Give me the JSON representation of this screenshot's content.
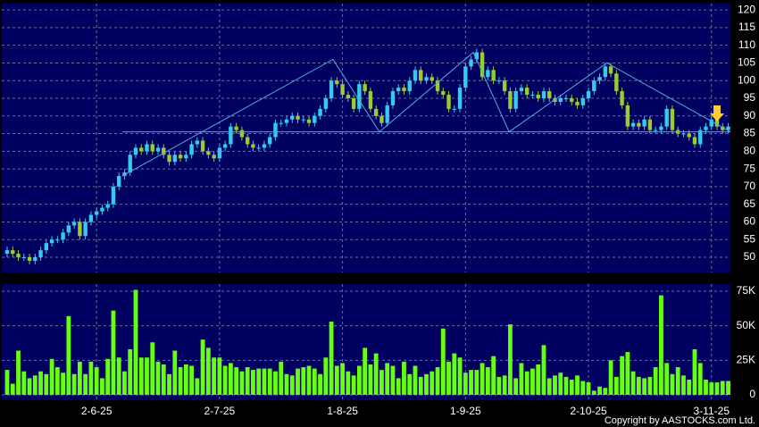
{
  "chart_data": {
    "type": "candlestick",
    "copyright": "Copyright by AASTOCKS.com Ltd.",
    "categories": [
      null,
      null,
      null,
      null,
      null,
      null,
      null,
      null,
      null,
      null,
      null,
      null,
      null,
      null,
      null,
      null,
      "2-6-25",
      null,
      null,
      null,
      null,
      null,
      null,
      null,
      null,
      null,
      null,
      null,
      null,
      null,
      null,
      null,
      null,
      null,
      null,
      null,
      null,
      null,
      "2-7-25",
      null,
      null,
      null,
      null,
      null,
      null,
      null,
      null,
      null,
      null,
      null,
      null,
      null,
      null,
      null,
      null,
      null,
      null,
      null,
      null,
      null,
      "1-8-25",
      null,
      null,
      null,
      null,
      null,
      null,
      null,
      null,
      null,
      null,
      null,
      null,
      null,
      null,
      null,
      null,
      null,
      null,
      null,
      null,
      null,
      "1-9-25",
      null,
      null,
      null,
      null,
      null,
      null,
      null,
      null,
      null,
      null,
      null,
      null,
      null,
      null,
      null,
      null,
      null,
      null,
      null,
      null,
      null,
      "2-10-25",
      null,
      null,
      null,
      null,
      null,
      null,
      null,
      null,
      null,
      null,
      null,
      null,
      null,
      null,
      null,
      null,
      null,
      null,
      null,
      null,
      null,
      "3-11-25",
      null,
      null,
      null
    ],
    "open": [
      51,
      52,
      51,
      50,
      50,
      49,
      50,
      52,
      54,
      55,
      55,
      57,
      59,
      60,
      56,
      60,
      62,
      63,
      64,
      65,
      70,
      73,
      74,
      79,
      81,
      80,
      82,
      80,
      81,
      79,
      77,
      79,
      78,
      79,
      82,
      83,
      80,
      79,
      78,
      81,
      82,
      87,
      86,
      84,
      82,
      81,
      81,
      82,
      84,
      88,
      88,
      89,
      90,
      89,
      89,
      88,
      90,
      92,
      95,
      100,
      99,
      96,
      95,
      92,
      99,
      97,
      92,
      90,
      88,
      93,
      97,
      98,
      97,
      100,
      103,
      100,
      101,
      100,
      97,
      96,
      92,
      92,
      98,
      104,
      106,
      108,
      101,
      103,
      100,
      100,
      97,
      92,
      97,
      98,
      96,
      96,
      95,
      97,
      95,
      94,
      95,
      95,
      94,
      93,
      95,
      97,
      100,
      101,
      104,
      102,
      97,
      93,
      87,
      88,
      87,
      89,
      86,
      86,
      87,
      92,
      86,
      85,
      85,
      84,
      82,
      86,
      87,
      89,
      87,
      86
    ],
    "high": [
      53,
      53,
      52,
      51,
      51,
      51,
      53,
      55,
      56,
      56,
      58,
      60,
      61,
      61,
      61,
      63,
      64,
      65,
      66,
      71,
      74,
      75,
      80,
      82,
      82,
      83,
      83,
      82,
      82,
      80,
      80,
      80,
      80,
      83,
      84,
      84,
      81,
      80,
      82,
      83,
      88,
      88,
      87,
      85,
      83,
      82,
      83,
      85,
      89,
      89,
      90,
      91,
      91,
      90,
      90,
      91,
      93,
      96,
      101,
      101,
      100,
      97,
      96,
      100,
      100,
      98,
      93,
      91,
      94,
      98,
      99,
      99,
      101,
      104,
      104,
      102,
      102,
      101,
      98,
      97,
      93,
      99,
      105,
      107,
      109,
      109,
      104,
      104,
      101,
      101,
      98,
      98,
      99,
      99,
      97,
      97,
      98,
      98,
      96,
      96,
      96,
      96,
      95,
      96,
      98,
      101,
      102,
      105,
      105,
      103,
      98,
      94,
      89,
      89,
      90,
      90,
      87,
      88,
      93,
      93,
      87,
      86,
      86,
      85,
      87,
      88,
      90,
      90,
      88,
      88
    ],
    "low": [
      50,
      50,
      49,
      49,
      48,
      48,
      49,
      51,
      53,
      54,
      54,
      56,
      58,
      55,
      55,
      59,
      61,
      62,
      63,
      64,
      69,
      72,
      73,
      78,
      79,
      79,
      79,
      79,
      78,
      76,
      76,
      77,
      77,
      78,
      81,
      79,
      78,
      77,
      77,
      80,
      81,
      85,
      83,
      81,
      80,
      80,
      80,
      81,
      83,
      87,
      87,
      88,
      88,
      88,
      87,
      87,
      89,
      91,
      94,
      98,
      95,
      94,
      91,
      91,
      96,
      91,
      89,
      87,
      87,
      92,
      96,
      96,
      96,
      99,
      99,
      99,
      99,
      96,
      95,
      91,
      91,
      91,
      97,
      103,
      105,
      100,
      100,
      99,
      99,
      96,
      91,
      91,
      96,
      95,
      95,
      94,
      94,
      94,
      93,
      93,
      94,
      93,
      92,
      92,
      94,
      96,
      99,
      100,
      101,
      96,
      92,
      86,
      86,
      86,
      86,
      85,
      85,
      85,
      86,
      85,
      84,
      84,
      83,
      81,
      81,
      85,
      86,
      86,
      85,
      85
    ],
    "close": [
      52,
      51,
      50,
      50,
      49,
      50,
      52,
      54,
      55,
      55,
      57,
      59,
      60,
      56,
      60,
      62,
      63,
      64,
      65,
      70,
      73,
      74,
      79,
      81,
      80,
      82,
      80,
      81,
      79,
      77,
      79,
      78,
      79,
      82,
      83,
      80,
      79,
      78,
      81,
      82,
      87,
      86,
      84,
      82,
      81,
      81,
      82,
      84,
      88,
      88,
      89,
      90,
      89,
      89,
      88,
      90,
      92,
      95,
      100,
      99,
      96,
      95,
      92,
      99,
      97,
      92,
      90,
      88,
      93,
      97,
      98,
      97,
      100,
      103,
      100,
      101,
      100,
      97,
      96,
      92,
      92,
      98,
      104,
      106,
      108,
      101,
      103,
      100,
      100,
      97,
      92,
      97,
      98,
      96,
      96,
      95,
      97,
      95,
      94,
      95,
      95,
      94,
      93,
      95,
      97,
      100,
      101,
      104,
      102,
      97,
      93,
      87,
      88,
      87,
      89,
      86,
      86,
      87,
      92,
      86,
      85,
      85,
      84,
      82,
      86,
      87,
      89,
      87,
      86,
      87
    ],
    "volume": [
      18000,
      8000,
      32000,
      17000,
      12000,
      14000,
      17000,
      15000,
      26000,
      20000,
      16000,
      57000,
      15000,
      24000,
      15000,
      24000,
      20000,
      12000,
      26000,
      61000,
      27000,
      17000,
      33000,
      76000,
      27000,
      27000,
      38000,
      24000,
      22000,
      15000,
      32000,
      20000,
      22000,
      21000,
      12000,
      40000,
      34000,
      27000,
      27000,
      21000,
      23000,
      20000,
      17000,
      20000,
      18000,
      19000,
      19000,
      19000,
      17000,
      24000,
      15000,
      14000,
      19000,
      20000,
      21000,
      19000,
      15000,
      27000,
      53000,
      21000,
      23000,
      17000,
      14000,
      21000,
      34000,
      22000,
      30000,
      18000,
      23000,
      21000,
      12000,
      24000,
      15000,
      21000,
      13000,
      15000,
      17000,
      20000,
      48000,
      24000,
      30000,
      27000,
      16000,
      18000,
      18000,
      23000,
      20000,
      28000,
      13000,
      14000,
      51000,
      12000,
      23000,
      17000,
      19000,
      22000,
      36000,
      12000,
      14000,
      16000,
      13000,
      11000,
      14000,
      10000,
      9000,
      3000,
      6000,
      5000,
      25000,
      13000,
      28000,
      31000,
      17000,
      13000,
      12000,
      13000,
      20000,
      72000,
      23000,
      15000,
      20000,
      14000,
      11000,
      33000,
      23000,
      11000,
      9000,
      9000,
      10000,
      10000
    ],
    "up_color": "#33ccee",
    "down_color": "#99cc33",
    "volume_color": "#66ff11",
    "line_color": "#55aadd",
    "support": 85.5,
    "trendline": {
      "x": [
        20.6,
        58.3,
        66.6,
        83.4,
        89.8,
        107.3,
        129.4
      ],
      "y": [
        73,
        106,
        85.5,
        108,
        85.5,
        105,
        85.5
      ]
    },
    "ylim": [
      45.7,
      121.8
    ],
    "yticks": [
      50,
      55,
      60,
      65,
      70,
      75,
      80,
      85,
      90,
      95,
      100,
      105,
      110,
      115,
      120
    ],
    "y2lim": [
      -3900,
      80200
    ],
    "y2ticks": [
      0,
      {
        "value": 25000,
        "label": "25K"
      },
      {
        "value": 50000,
        "label": "50K"
      },
      {
        "value": 75000,
        "label": "75K"
      }
    ],
    "grid": true
  }
}
